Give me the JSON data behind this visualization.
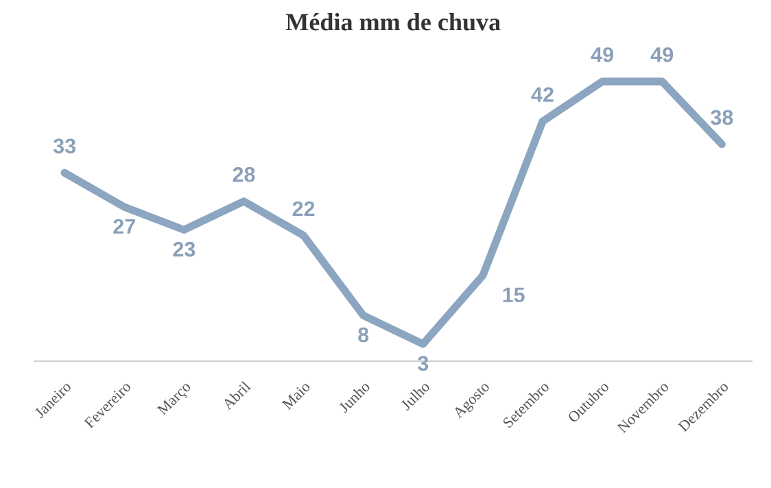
{
  "chart_data": {
    "type": "line",
    "title": "Média mm de chuva",
    "categories": [
      "Janeiro",
      "Fevereiro",
      "Março",
      "Abril",
      "Maio",
      "Junho",
      "Julho",
      "Agosto",
      "Setembro",
      "Outubro",
      "Novembro",
      "Dezembro"
    ],
    "series": [
      {
        "color": "#8ca5c0",
        "values": [
          33,
          27,
          23,
          28,
          22,
          8,
          3,
          15,
          42,
          49,
          49,
          38
        ]
      }
    ],
    "data_labels": true,
    "grid": false,
    "marker": "none",
    "line_style": "solid"
  }
}
